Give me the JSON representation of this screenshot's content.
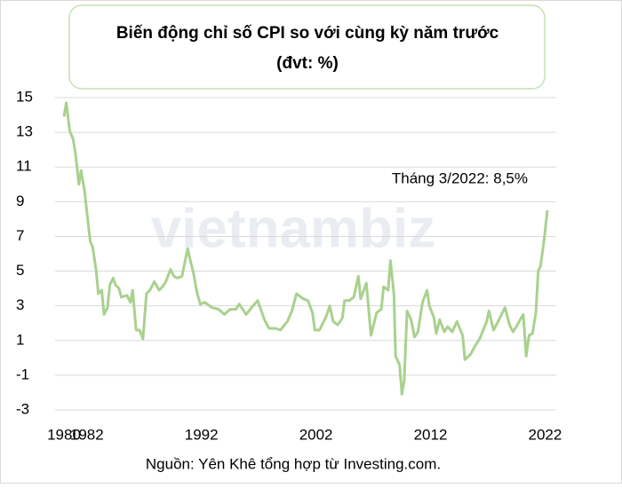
{
  "chart_data": {
    "type": "line",
    "title": "Biến động chỉ số CPI so với cùng kỳ năm trước",
    "subtitle": "(đvt: %)",
    "annotation": "Tháng 3/2022: 8,5%",
    "source": "Nguồn: Yên Khê tổng hợp từ Investing.com.",
    "watermark": "vietnambiz",
    "xlim": [
      1980,
      2022.2
    ],
    "xticks": [
      1980,
      1982,
      1992,
      2002,
      2012,
      2022
    ],
    "ylim": [
      -3,
      15
    ],
    "yticks": [
      -3,
      -1,
      1,
      3,
      5,
      7,
      9,
      11,
      13,
      15
    ],
    "grid": true,
    "x": [
      1980.0,
      1980.2,
      1980.5,
      1980.8,
      1981.0,
      1981.3,
      1981.5,
      1981.8,
      1982.0,
      1982.3,
      1982.5,
      1982.8,
      1983.0,
      1983.3,
      1983.5,
      1983.8,
      1984.0,
      1984.3,
      1984.5,
      1984.8,
      1985.0,
      1985.5,
      1985.8,
      1986.0,
      1986.3,
      1986.6,
      1986.9,
      1987.2,
      1987.5,
      1987.9,
      1988.3,
      1988.6,
      1988.9,
      1989.3,
      1989.6,
      1989.9,
      1990.3,
      1990.8,
      1991.0,
      1991.3,
      1991.6,
      1991.9,
      1992.3,
      1992.9,
      1993.5,
      1994.0,
      1994.5,
      1995.0,
      1995.3,
      1995.9,
      1996.5,
      1996.9,
      1997.5,
      1997.9,
      1998.5,
      1998.9,
      1999.5,
      1999.9,
      2000.3,
      2000.9,
      2001.3,
      2001.7,
      2001.9,
      2002.3,
      2002.9,
      2003.2,
      2003.5,
      2003.9,
      2004.3,
      2004.5,
      2004.9,
      2005.3,
      2005.7,
      2005.9,
      2006.4,
      2006.8,
      2007.3,
      2007.7,
      2007.9,
      2008.3,
      2008.5,
      2008.8,
      2008.95,
      2009.3,
      2009.5,
      2009.7,
      2009.95,
      2010.3,
      2010.6,
      2010.9,
      2011.3,
      2011.7,
      2011.9,
      2012.3,
      2012.5,
      2012.8,
      2013.2,
      2013.5,
      2013.9,
      2014.3,
      2014.8,
      2015.0,
      2015.5,
      2015.9,
      2016.3,
      2016.9,
      2017.1,
      2017.5,
      2017.9,
      2018.5,
      2018.9,
      2019.2,
      2019.5,
      2019.9,
      2020.1,
      2020.35,
      2020.6,
      2020.9,
      2021.2,
      2021.4,
      2021.6,
      2021.8,
      2021.95,
      2022.1,
      2022.2
    ],
    "series": [
      {
        "name": "CPI",
        "color": "#a9d18e",
        "values": [
          13.9,
          14.7,
          13.1,
          12.6,
          11.8,
          10.0,
          10.8,
          9.6,
          8.4,
          6.7,
          6.4,
          5.1,
          3.7,
          3.9,
          2.5,
          2.9,
          4.2,
          4.6,
          4.2,
          4.0,
          3.5,
          3.6,
          3.2,
          3.9,
          1.6,
          1.6,
          1.1,
          3.7,
          3.9,
          4.4,
          3.9,
          4.1,
          4.4,
          5.1,
          4.7,
          4.6,
          4.7,
          6.3,
          5.7,
          4.9,
          3.8,
          3.1,
          3.2,
          2.9,
          2.8,
          2.5,
          2.8,
          2.8,
          3.1,
          2.5,
          3.0,
          3.3,
          2.2,
          1.7,
          1.7,
          1.6,
          2.1,
          2.7,
          3.7,
          3.4,
          3.3,
          2.6,
          1.6,
          1.6,
          2.4,
          3.0,
          2.1,
          1.9,
          2.3,
          3.3,
          3.3,
          3.5,
          4.7,
          3.4,
          4.3,
          1.3,
          2.6,
          2.8,
          4.1,
          3.9,
          5.6,
          3.7,
          0.1,
          -0.4,
          -2.1,
          -1.3,
          2.7,
          2.2,
          1.2,
          1.5,
          3.2,
          3.9,
          3.0,
          2.3,
          1.4,
          2.2,
          1.5,
          1.8,
          1.5,
          2.1,
          1.3,
          -0.1,
          0.2,
          0.7,
          1.1,
          2.1,
          2.7,
          1.6,
          2.1,
          2.9,
          1.9,
          1.5,
          1.8,
          2.3,
          2.5,
          0.1,
          1.3,
          1.4,
          2.6,
          5.0,
          5.3,
          6.2,
          7.0,
          7.9,
          8.5
        ]
      }
    ]
  }
}
